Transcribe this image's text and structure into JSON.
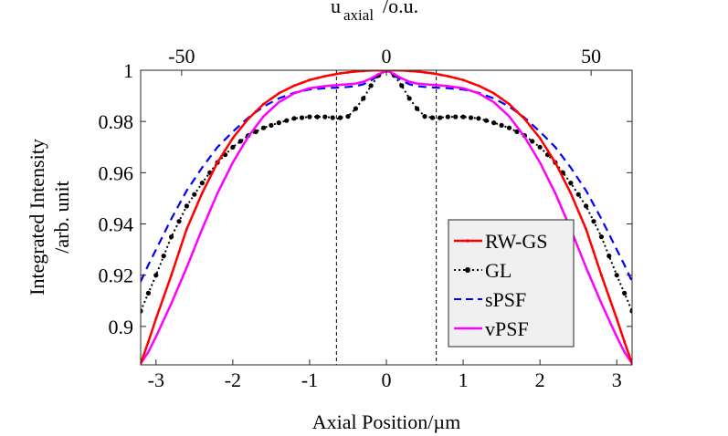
{
  "chart_data": {
    "type": "line",
    "title": "",
    "xlabel": "Axial Position/µm",
    "ylabel_line1": "Integrated Intensity",
    "ylabel_line2": "/arb. unit",
    "top_xlabel_main": "u",
    "top_xlabel_sub": "axial",
    "top_xlabel_tail": "/o.u.",
    "xlim": [
      -3.2,
      3.2
    ],
    "ylim": [
      0.885,
      1.0
    ],
    "xticks": [
      -3,
      -2,
      -1,
      0,
      1,
      2,
      3
    ],
    "xtick_labels": [
      "-3",
      "-2",
      "-1",
      "0",
      "1",
      "2",
      "3"
    ],
    "yticks": [
      0.9,
      0.92,
      0.94,
      0.96,
      0.98,
      1.0
    ],
    "ytick_labels": [
      "0.9",
      "0.92",
      "0.94",
      "0.96",
      "0.98",
      "1"
    ],
    "top_xlim": [
      -60,
      60
    ],
    "top_xticks": [
      -50,
      0,
      50
    ],
    "top_xtick_labels": [
      "-50",
      "0",
      "50"
    ],
    "vlines": [
      -0.65,
      0.65
    ],
    "legend_position": "lower-right",
    "series": [
      {
        "name": "RW-GS",
        "color": "#ff0000",
        "style": "solid-dots",
        "x": [
          0,
          0.2,
          0.4,
          0.6,
          0.8,
          1.0,
          1.2,
          1.4,
          1.6,
          1.8,
          2.0,
          2.2,
          2.4,
          2.6,
          2.8,
          3.0,
          3.1,
          3.2
        ],
        "y": [
          1.0,
          0.9999,
          0.9995,
          0.9988,
          0.9977,
          0.9962,
          0.994,
          0.991,
          0.9868,
          0.981,
          0.9735,
          0.964,
          0.952,
          0.938,
          0.92,
          0.903,
          0.894,
          0.8855
        ]
      },
      {
        "name": "GL",
        "color": "#000000",
        "style": "dotted-markers",
        "x": [
          0,
          0.1,
          0.2,
          0.3,
          0.4,
          0.5,
          0.6,
          0.65,
          0.7,
          0.8,
          1.0,
          1.2,
          1.4,
          1.6,
          1.8,
          2.0,
          2.2,
          2.4,
          2.6,
          2.8,
          3.0,
          3.1,
          3.2
        ],
        "y": [
          1.0,
          0.998,
          0.994,
          0.989,
          0.985,
          0.982,
          0.9815,
          0.981,
          0.9815,
          0.9818,
          0.9818,
          0.9812,
          0.9795,
          0.9775,
          0.9745,
          0.97,
          0.964,
          0.956,
          0.947,
          0.935,
          0.92,
          0.913,
          0.906
        ]
      },
      {
        "name": "sPSF",
        "color": "#0000ff",
        "style": "dashed",
        "x": [
          0,
          0.1,
          0.2,
          0.3,
          0.4,
          0.5,
          0.65,
          0.8,
          1.0,
          1.2,
          1.4,
          1.6,
          1.8,
          2.0,
          2.2,
          2.4,
          2.6,
          2.8,
          3.0,
          3.1,
          3.2
        ],
        "y": [
          1.0,
          0.998,
          0.996,
          0.9945,
          0.9938,
          0.9935,
          0.9932,
          0.993,
          0.9925,
          0.9912,
          0.989,
          0.9858,
          0.9815,
          0.976,
          0.97,
          0.962,
          0.953,
          0.942,
          0.93,
          0.924,
          0.9175
        ]
      },
      {
        "name": "vPSF",
        "color": "#ff00ff",
        "style": "solid",
        "x": [
          0,
          0.1,
          0.2,
          0.3,
          0.4,
          0.5,
          0.65,
          0.8,
          1.0,
          1.2,
          1.4,
          1.6,
          1.8,
          2.0,
          2.2,
          2.4,
          2.6,
          2.8,
          3.0,
          3.1,
          3.2
        ],
        "y": [
          1.0,
          0.9985,
          0.9968,
          0.9955,
          0.9948,
          0.9945,
          0.9942,
          0.9938,
          0.993,
          0.991,
          0.9875,
          0.982,
          0.974,
          0.964,
          0.952,
          0.938,
          0.923,
          0.909,
          0.896,
          0.89,
          0.8855
        ]
      }
    ]
  }
}
